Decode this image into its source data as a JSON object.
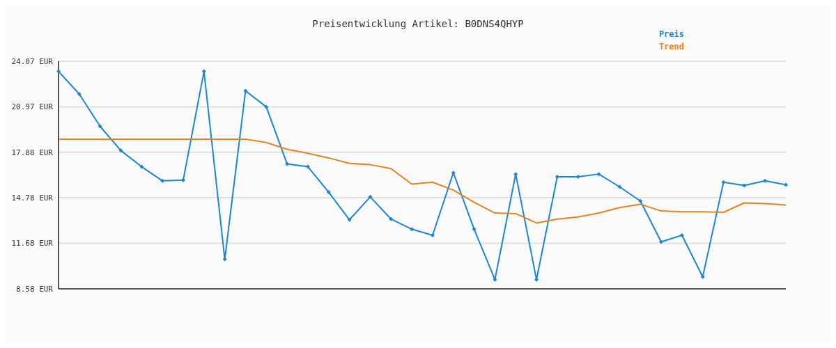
{
  "chart_data": {
    "type": "line",
    "title": "Preisentwicklung Artikel: B0DNS4QHYP",
    "categories": [
      null,
      null,
      null,
      null,
      null,
      null,
      null,
      null,
      null,
      null,
      null,
      null,
      null,
      null,
      null,
      null,
      null,
      null,
      null,
      null,
      null,
      null,
      null,
      null,
      null,
      null,
      null,
      null,
      null,
      null,
      null,
      null,
      null,
      null,
      null,
      null
    ],
    "series": [
      {
        "name": "Preis",
        "color": "#1a87d4",
        "marker": "diamond",
        "values": [
          23.38,
          21.83,
          19.64,
          17.99,
          16.89,
          15.93,
          15.98,
          23.38,
          10.59,
          22.06,
          20.96,
          17.08,
          16.89,
          15.16,
          13.28,
          14.84,
          13.33,
          12.64,
          12.23,
          16.48,
          12.64,
          9.21,
          16.39,
          9.21,
          16.21,
          16.21,
          16.39,
          15.52,
          14.56,
          11.78,
          12.23,
          9.4,
          15.84,
          15.61,
          15.93,
          15.66
        ]
      },
      {
        "name": "Trend",
        "color": "#e5841f",
        "marker": "none",
        "values": [
          18.77,
          18.77,
          18.77,
          18.77,
          18.77,
          18.77,
          18.77,
          18.77,
          18.77,
          18.77,
          18.54,
          18.08,
          17.81,
          17.49,
          17.12,
          17.03,
          16.76,
          15.71,
          15.84,
          15.3,
          14.47,
          13.74,
          13.7,
          13.06,
          13.33,
          13.47,
          13.74,
          14.11,
          14.34,
          13.88,
          13.83,
          13.83,
          13.79,
          14.43,
          14.38,
          14.29
        ]
      }
    ],
    "ylim": [
      8.58,
      24.07
    ],
    "yticks": [
      {
        "value": 8.58,
        "label": "8.58 EUR"
      },
      {
        "value": 11.68,
        "label": "11.68 EUR"
      },
      {
        "value": 14.78,
        "label": "14.78 EUR"
      },
      {
        "value": 17.88,
        "label": "17.88 EUR"
      },
      {
        "value": 20.97,
        "label": "20.97 EUR"
      },
      {
        "value": 24.07,
        "label": "24.07 EUR"
      }
    ],
    "grid": "y",
    "legend": "top right",
    "tick_labels": "y"
  }
}
